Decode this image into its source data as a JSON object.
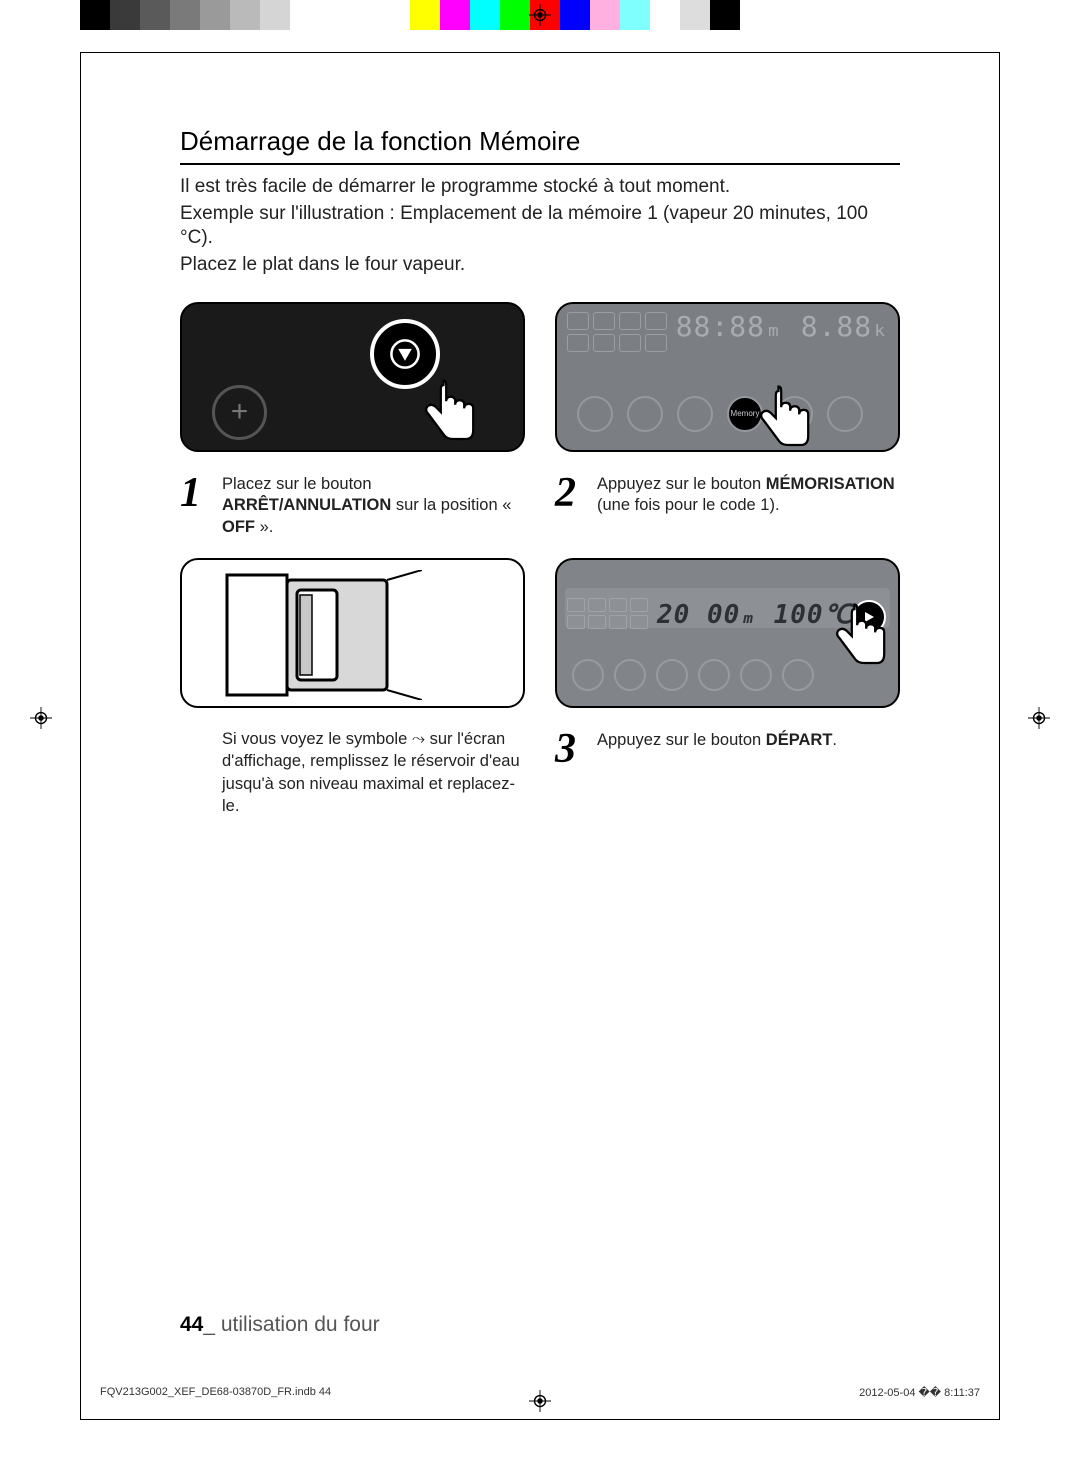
{
  "colorbar": [
    "#000000",
    "#3a3a3a",
    "#5a5a5a",
    "#7a7a7a",
    "#9a9a9a",
    "#bababa",
    "#d5d5d5",
    "#ffffff",
    "#ffffff",
    "gap",
    "#ffff00",
    "#ff00ff",
    "#00ffff",
    "#00ff00",
    "#ff0000",
    "#0000ff",
    "#ffb0e0",
    "#80ffff",
    "#ffffff",
    "#dddddd",
    "#000000"
  ],
  "title": "Démarrage de la fonction Mémoire",
  "intro": {
    "line1": "Il est très facile de démarrer le programme stocké à tout moment.",
    "line2": "Exemple sur l'illustration : Emplacement de la mémoire 1 (vapeur 20 minutes, 100 °C).",
    "line3": "Placez le plat dans le four vapeur."
  },
  "panel2": {
    "digits": "88:88ₘ 8.88ₖ",
    "memory_label": "Memory"
  },
  "panel4": {
    "digits": "20 00ₘ  100℃"
  },
  "step1": {
    "num": "1",
    "pre": "Placez sur le bouton ",
    "bold1": "ARRÊT/ANNULATION",
    "mid": " sur la position « ",
    "bold2": "OFF",
    "post": " »."
  },
  "step2": {
    "num": "2",
    "pre": "Appuyez sur le bouton ",
    "bold": "MÉMORISATION",
    "post": " (une fois pour le code 1)."
  },
  "note": "Si vous voyez le symbole ⤳ sur l'écran d'affichage, remplissez le réservoir d'eau jusqu'à son niveau maximal et replacez-le.",
  "step3": {
    "num": "3",
    "pre": "Appuyez sur le bouton ",
    "bold": "DÉPART",
    "post": "."
  },
  "footer": {
    "page": "44",
    "sep": "_ ",
    "label": "utilisation du four"
  },
  "printFooter": {
    "left": "FQV213G002_XEF_DE68-03870D_FR.indb   44",
    "right": "2012-05-04   �� 8:11:37"
  }
}
